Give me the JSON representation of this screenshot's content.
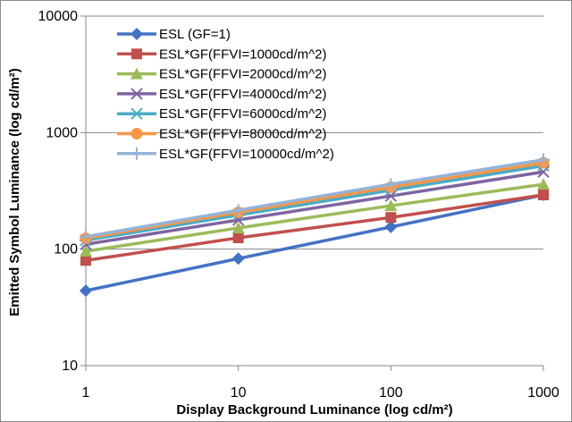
{
  "chart_data": {
    "type": "line",
    "x_scale": "log",
    "y_scale": "log",
    "x": [
      1,
      10,
      100,
      1000
    ],
    "xlim": [
      1,
      1000
    ],
    "ylim": [
      10,
      10000
    ],
    "x_ticks": [
      "1",
      "10",
      "100",
      "1000"
    ],
    "y_ticks": [
      "10",
      "100",
      "1000",
      "10000"
    ],
    "xlabel": "Display Background Luminance (log cd/m²)",
    "ylabel": "Emitted Symbol Luminance (log cd/m²)",
    "grid": "horizontal major gridlines",
    "legend_position": "top-left",
    "series": [
      {
        "name": "ESL (GF=1)",
        "color": "#4472C4",
        "marker": "diamond",
        "values": [
          44,
          83,
          155,
          292
        ]
      },
      {
        "name": "ESL*GF(FFVI=1000cd/m^2)",
        "color": "#C0504D",
        "marker": "square",
        "values": [
          80,
          125,
          187,
          292
        ]
      },
      {
        "name": "ESL*GF(FFVI=2000cd/m^2)",
        "color": "#9BBB59",
        "marker": "triangle",
        "values": [
          96,
          152,
          236,
          360
        ]
      },
      {
        "name": "ESL*GF(FFVI=4000cd/m^2)",
        "color": "#8064A2",
        "marker": "x",
        "values": [
          110,
          178,
          286,
          460
        ]
      },
      {
        "name": "ESL*GF(FFVI=6000cd/m^2)",
        "color": "#4BACC6",
        "marker": "asterisk",
        "values": [
          119,
          196,
          320,
          520
        ]
      },
      {
        "name": "ESL*GF(FFVI=8000cd/m^2)",
        "color": "#F79646",
        "marker": "circle",
        "values": [
          124,
          207,
          340,
          550
        ]
      },
      {
        "name": "ESL*GF(FFVI=10000cd/m^2)",
        "color": "#95B3D7",
        "marker": "plus",
        "values": [
          128,
          216,
          360,
          585
        ]
      }
    ]
  }
}
